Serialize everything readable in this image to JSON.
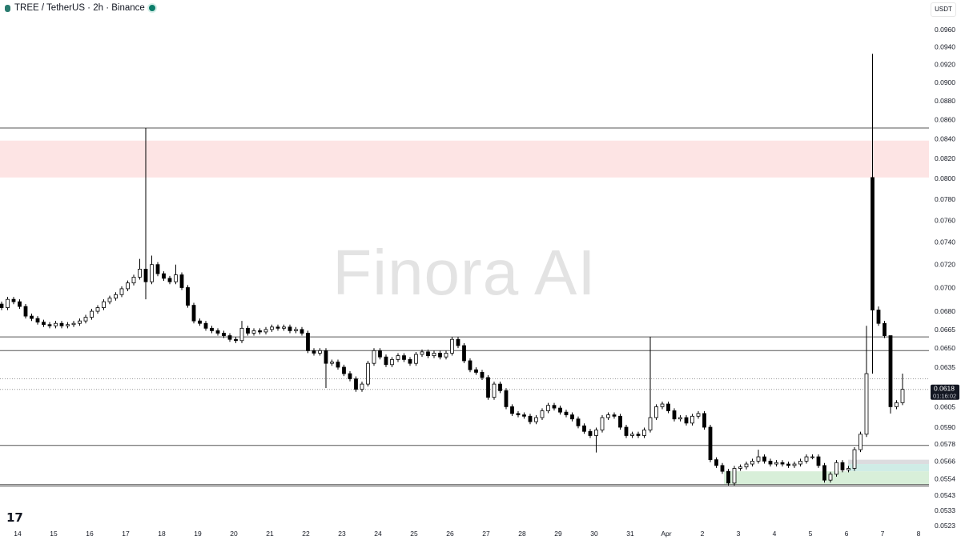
{
  "header": {
    "symbol": "TREE",
    "pair": "TREE / TetherUS · 2h · Binance",
    "currency": "USDT"
  },
  "watermark": "Finora AI",
  "logo": "TV",
  "current_price": {
    "value": "0.0618",
    "countdown": "01:16:02",
    "bg_color": "#131722"
  },
  "colors": {
    "up_fill": "#ffffff",
    "down_fill": "#000000",
    "outline": "#000000",
    "resistance_zone": "#fde4e4",
    "support_zone": "#d8efd9",
    "teal_zone": "#cfece6",
    "gray_zone": "#dcdcdf"
  },
  "chart_data": {
    "type": "candlestick",
    "interval": "2h",
    "y_scale": "log",
    "ylim": [
      0.0516,
      0.0985
    ],
    "y_ticks": [
      "0.0960",
      "0.0940",
      "0.0920",
      "0.0900",
      "0.0880",
      "0.0860",
      "0.0840",
      "0.0820",
      "0.0800",
      "0.0780",
      "0.0760",
      "0.0740",
      "0.0720",
      "0.0700",
      "0.0680",
      "0.0665",
      "0.0650",
      "0.0635",
      "0.0605",
      "0.0590",
      "0.0578",
      "0.0566",
      "0.0554",
      "0.0543",
      "0.0533",
      "0.0523"
    ],
    "x_ticks": [
      "14",
      "15",
      "16",
      "17",
      "18",
      "19",
      "20",
      "21",
      "22",
      "23",
      "24",
      "25",
      "26",
      "27",
      "28",
      "29",
      "30",
      "31",
      "Apr",
      "2",
      "3",
      "4",
      "5",
      "6",
      "7",
      "8"
    ],
    "first_open": 0.0686,
    "close": [
      0.0683,
      0.069,
      0.0688,
      0.0684,
      0.0676,
      0.0674,
      0.0671,
      0.0669,
      0.0668,
      0.067,
      0.0668,
      0.0669,
      0.067,
      0.0672,
      0.0675,
      0.068,
      0.0683,
      0.0688,
      0.0691,
      0.0694,
      0.0699,
      0.0704,
      0.0709,
      0.0716,
      0.0705,
      0.072,
      0.0712,
      0.0708,
      0.0705,
      0.0711,
      0.07,
      0.0685,
      0.0672,
      0.067,
      0.0666,
      0.0664,
      0.0662,
      0.066,
      0.0657,
      0.0656,
      0.0666,
      0.0662,
      0.0664,
      0.0663,
      0.0665,
      0.0667,
      0.0666,
      0.0667,
      0.0664,
      0.0665,
      0.0662,
      0.0648,
      0.0646,
      0.0648,
      0.0638,
      0.0639,
      0.0635,
      0.063,
      0.0626,
      0.0618,
      0.0622,
      0.0638,
      0.0648,
      0.0643,
      0.0637,
      0.0641,
      0.0644,
      0.0641,
      0.0638,
      0.0645,
      0.0647,
      0.0644,
      0.0646,
      0.0643,
      0.0646,
      0.0657,
      0.0652,
      0.064,
      0.0633,
      0.0631,
      0.0627,
      0.0612,
      0.0622,
      0.0617,
      0.0605,
      0.06,
      0.0599,
      0.0598,
      0.0594,
      0.0597,
      0.0602,
      0.0606,
      0.0604,
      0.0601,
      0.0599,
      0.0596,
      0.0591,
      0.0587,
      0.0584,
      0.0588,
      0.0597,
      0.0599,
      0.0598,
      0.059,
      0.0584,
      0.0585,
      0.0584,
      0.0588,
      0.0597,
      0.0605,
      0.0607,
      0.0602,
      0.0596,
      0.0597,
      0.0593,
      0.0598,
      0.06,
      0.059,
      0.0567,
      0.0563,
      0.0559,
      0.0551,
      0.0561,
      0.0562,
      0.0564,
      0.0566,
      0.0569,
      0.0566,
      0.0564,
      0.0565,
      0.0564,
      0.0563,
      0.0564,
      0.0566,
      0.0569,
      0.0569,
      0.0563,
      0.0553,
      0.0557,
      0.0565,
      0.056,
      0.0561,
      0.0574,
      0.0585,
      0.063,
      0.0681,
      0.067,
      0.066,
      0.0605,
      0.0608,
      0.0618
    ],
    "overrides": {
      "23": {
        "h": 0.0725
      },
      "24": {
        "h": 0.0851,
        "l": 0.069
      },
      "25": {
        "h": 0.0728
      },
      "29": {
        "h": 0.072
      },
      "40": {
        "h": 0.0672
      },
      "54": {
        "l": 0.0619
      },
      "99": {
        "l": 0.0572
      },
      "108": {
        "h": 0.0659
      },
      "126": {
        "h": 0.0574
      },
      "144": {
        "h": 0.0668,
        "l": 0.0583
      },
      "145": {
        "o": 0.0801,
        "h": 0.0932,
        "l": 0.063
      },
      "146": {
        "h": 0.0684
      },
      "148": {
        "h": 0.066,
        "l": 0.06
      },
      "150": {
        "h": 0.063
      }
    },
    "horizontal_lines": [
      0.0851,
      0.0659,
      0.0648,
      0.0577,
      0.055,
      0.0549
    ],
    "dotted_lines": [
      0.0626,
      0.0618
    ],
    "zones": [
      {
        "kind": "resistance",
        "from": 0.0801,
        "to": 0.0838,
        "start_day": "13",
        "color": "#fde4e4"
      },
      {
        "kind": "gray",
        "from": 0.0564,
        "to": 0.0567,
        "start_day": "6",
        "color": "#dcdcdf"
      },
      {
        "kind": "teal",
        "from": 0.0559,
        "to": 0.0564,
        "start_day": "6",
        "color": "#cfece6"
      },
      {
        "kind": "support",
        "from": 0.055,
        "to": 0.0559,
        "start_day": "2",
        "color": "#d8efd9"
      }
    ]
  }
}
